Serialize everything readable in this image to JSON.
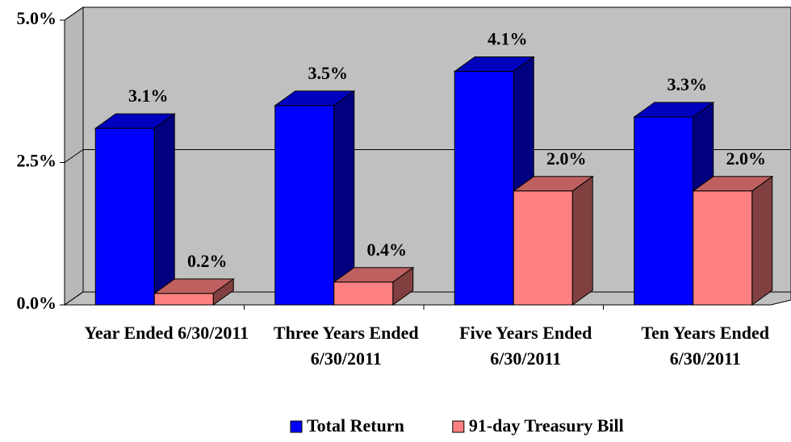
{
  "chart_data": {
    "type": "bar3d",
    "categories": [
      "Year Ended 6/30/2011",
      "Three Years Ended 6/30/2011",
      "Five Years Ended 6/30/2011",
      "Ten Years Ended 6/30/2011"
    ],
    "series": [
      {
        "name": "Total Return",
        "color": "#0000ff",
        "values": [
          3.1,
          3.5,
          4.1,
          3.3
        ],
        "value_labels": [
          "3.1%",
          "3.5%",
          "4.1%",
          "3.3%"
        ]
      },
      {
        "name": "91-day Treasury Bill",
        "color": "#ff8080",
        "values": [
          0.2,
          0.4,
          2.0,
          2.0
        ],
        "value_labels": [
          "0.2%",
          "0.4%",
          "2.0%",
          "2.0%"
        ]
      }
    ],
    "ylim": [
      0,
      5
    ],
    "yticks": [
      {
        "value": 0,
        "label": "0.0%"
      },
      {
        "value": 2.5,
        "label": "2.5%"
      },
      {
        "value": 5,
        "label": "5.0%"
      }
    ],
    "grid": true,
    "legend": "bottom"
  }
}
